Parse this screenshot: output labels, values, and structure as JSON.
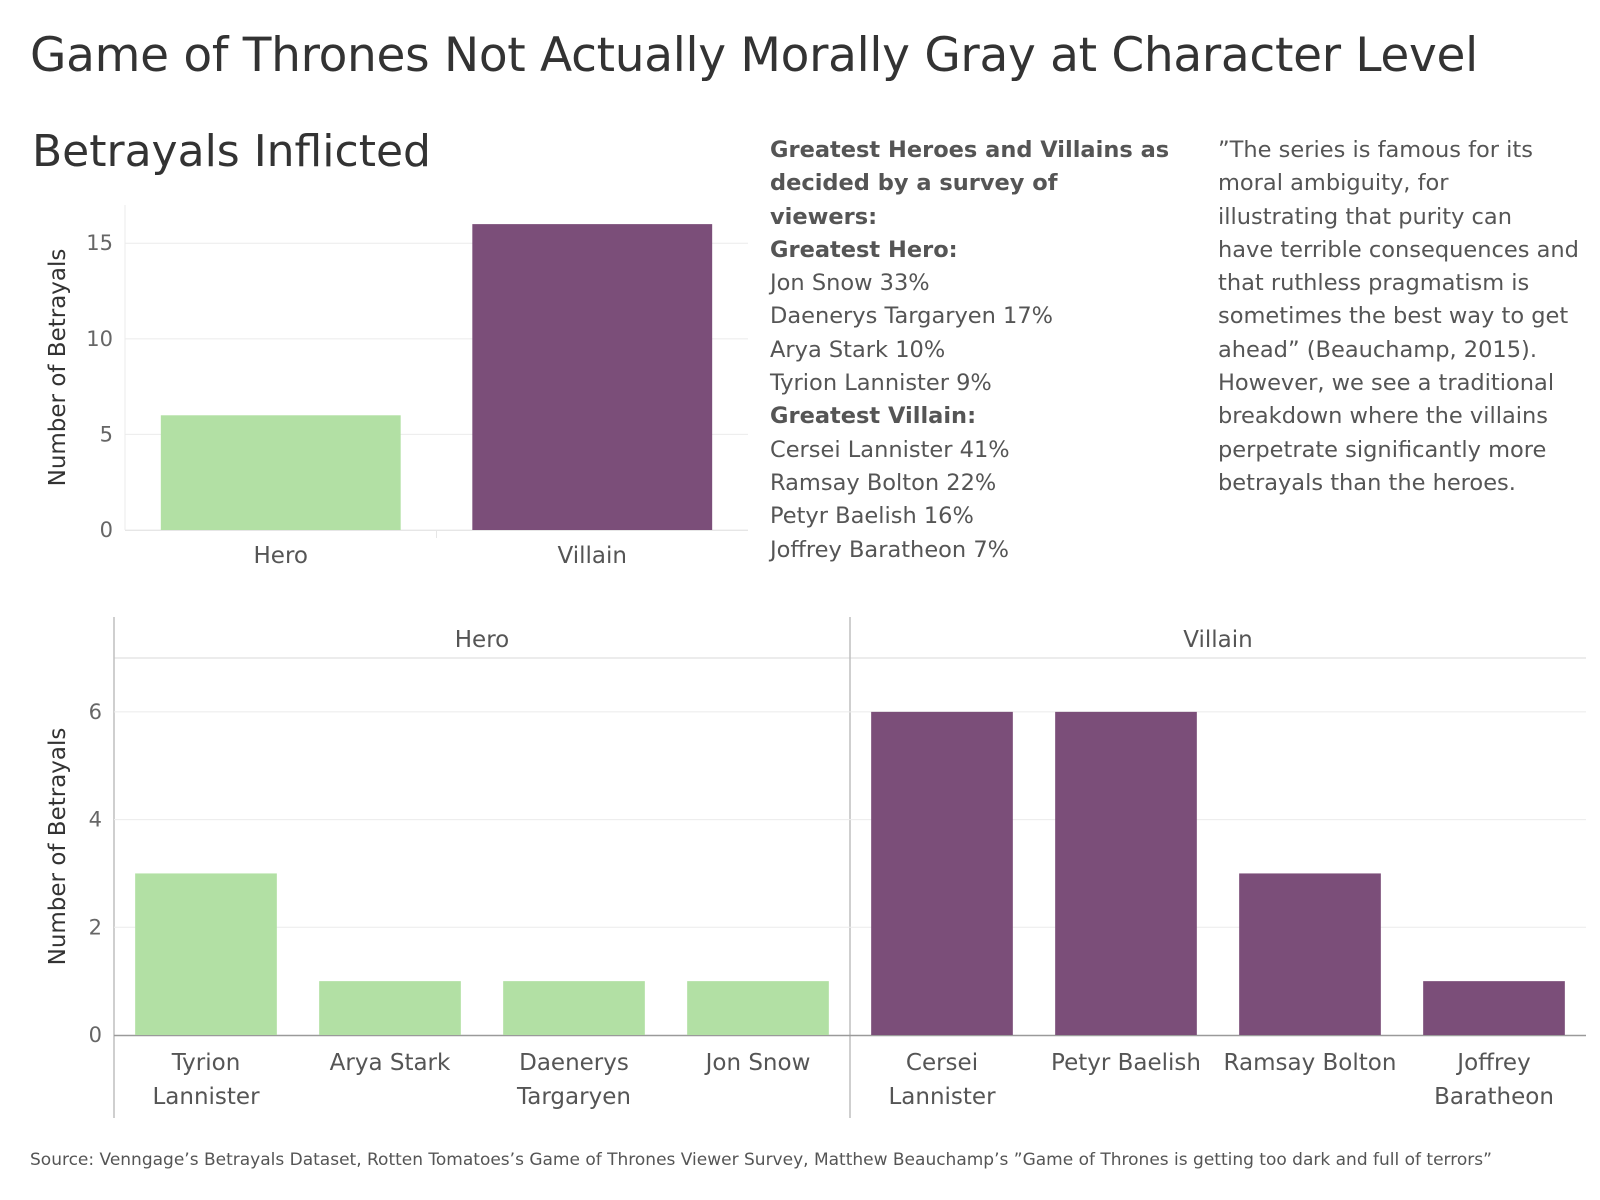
{
  "title": "Game of Thrones Not Actually Morally Gray at Character Level",
  "colors": {
    "hero": "#b2e0a4",
    "villain": "#7b4e79"
  },
  "survey": {
    "heading_line1": "Greatest Heroes and Villains as",
    "heading_line2": "decided by a survey of viewers:",
    "hero_heading": "Greatest Hero:",
    "heroes": [
      "Jon Snow 33%",
      "Daenerys Targaryen 17%",
      "Arya Stark 10%",
      "Tyrion Lannister 9%"
    ],
    "villain_heading": "Greatest Villain:",
    "villains": [
      "Cersei Lannister 41%",
      "Ramsay Bolton 22%",
      "Petyr Baelish 16%",
      "Joffrey Baratheon 7%"
    ]
  },
  "quote": {
    "lines": [
      "”The series is famous for its",
      "moral ambiguity, for",
      "illustrating that purity can",
      "have terrible consequences and",
      "that ruthless pragmatism is",
      "sometimes the best way to get",
      "ahead” (Beauchamp, 2015).",
      "However, we see a traditional",
      "breakdown where the villains",
      "perpetrate significantly more",
      "betrayals than the heroes."
    ]
  },
  "source": "Source: Venngage’s Betrayals Dataset, Rotten Tomatoes’s Game of Thrones Viewer Survey, Matthew Beauchamp’s ”Game of Thrones is getting too dark and full of terrors”",
  "chart_data": [
    {
      "type": "bar",
      "title": "Betrayals Inflicted",
      "xlabel": "",
      "ylabel": "Number of Betrayals",
      "categories": [
        "Hero",
        "Villain"
      ],
      "values": [
        6,
        16
      ],
      "yticks": [
        0,
        5,
        10,
        15
      ],
      "ylim": [
        0,
        17
      ],
      "grid": true
    },
    {
      "type": "bar",
      "title": "",
      "xlabel": "",
      "ylabel": "Number of Betrayals",
      "panels": [
        {
          "name": "Hero",
          "categories": [
            [
              "Tyrion",
              "Lannister"
            ],
            [
              "Arya Stark"
            ],
            [
              "Daenerys",
              "Targaryen"
            ],
            [
              "Jon Snow"
            ]
          ],
          "values": [
            3,
            1,
            1,
            1
          ]
        },
        {
          "name": "Villain",
          "categories": [
            [
              "Cersei",
              "Lannister"
            ],
            [
              "Petyr Baelish"
            ],
            [
              "Ramsay Bolton"
            ],
            [
              "Joffrey",
              "Baratheon"
            ]
          ],
          "values": [
            6,
            6,
            3,
            1
          ]
        }
      ],
      "yticks": [
        0,
        2,
        4,
        6
      ],
      "ylim": [
        0,
        7
      ],
      "grid": true
    }
  ]
}
